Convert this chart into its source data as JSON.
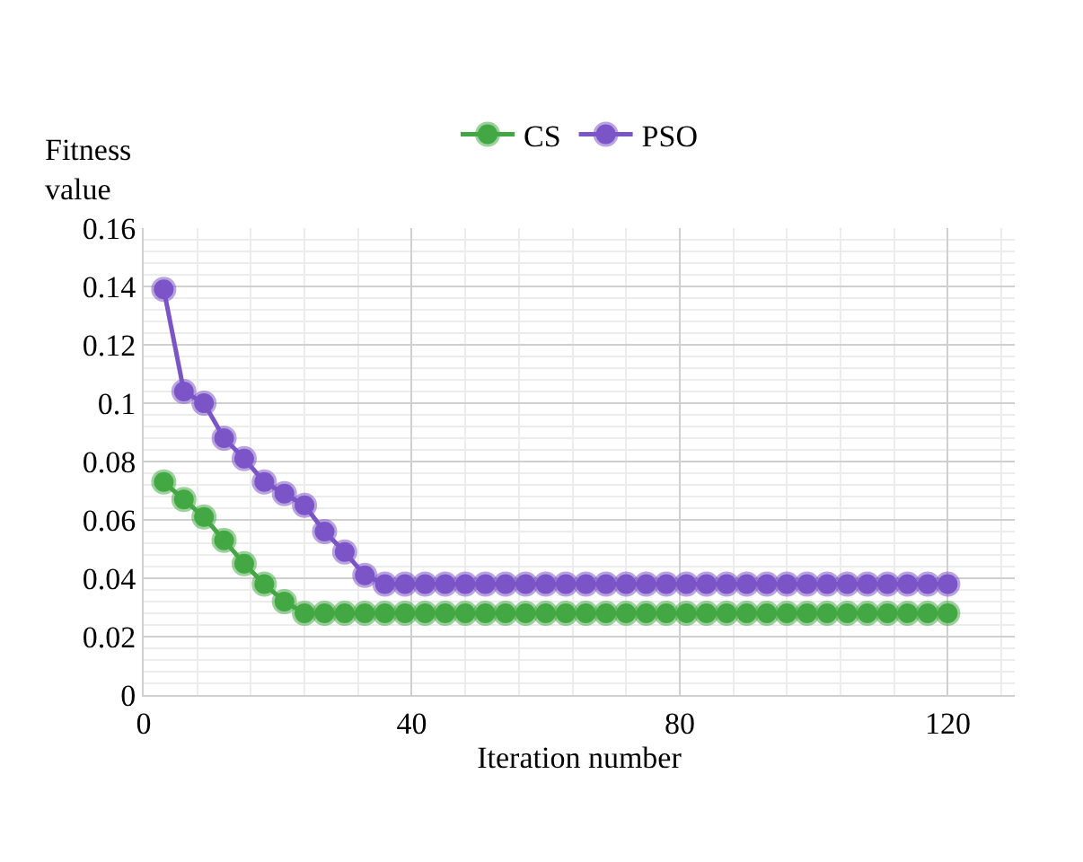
{
  "chart_data": {
    "type": "line",
    "xlabel": "Iteration number",
    "ylabel": "Fitness value",
    "x": [
      3,
      6,
      9,
      12,
      15,
      18,
      21,
      24,
      27,
      30,
      33,
      36,
      39,
      42,
      45,
      48,
      51,
      54,
      57,
      60,
      63,
      66,
      69,
      72,
      75,
      78,
      81,
      84,
      87,
      90,
      93,
      96,
      99,
      102,
      105,
      108,
      111,
      114,
      117,
      120
    ],
    "series": [
      {
        "name": "CS",
        "color": "#43a843",
        "values": [
          0.073,
          0.067,
          0.061,
          0.053,
          0.045,
          0.038,
          0.032,
          0.028,
          0.028,
          0.028,
          0.028,
          0.028,
          0.028,
          0.028,
          0.028,
          0.028,
          0.028,
          0.028,
          0.028,
          0.028,
          0.028,
          0.028,
          0.028,
          0.028,
          0.028,
          0.028,
          0.028,
          0.028,
          0.028,
          0.028,
          0.028,
          0.028,
          0.028,
          0.028,
          0.028,
          0.028,
          0.028,
          0.028,
          0.028,
          0.028
        ]
      },
      {
        "name": "PSO",
        "color": "#7b55c7",
        "values": [
          0.139,
          0.104,
          0.1,
          0.088,
          0.081,
          0.073,
          0.069,
          0.065,
          0.056,
          0.049,
          0.041,
          0.038,
          0.038,
          0.038,
          0.038,
          0.038,
          0.038,
          0.038,
          0.038,
          0.038,
          0.038,
          0.038,
          0.038,
          0.038,
          0.038,
          0.038,
          0.038,
          0.038,
          0.038,
          0.038,
          0.038,
          0.038,
          0.038,
          0.038,
          0.038,
          0.038,
          0.038,
          0.038,
          0.038,
          0.038
        ]
      }
    ],
    "xlim": [
      0,
      130
    ],
    "xticks": [
      0,
      40,
      80,
      120
    ],
    "ylim": [
      0,
      0.16
    ],
    "yticks": [
      0,
      {
        "value": 0.02,
        "label": "0.02"
      },
      {
        "value": 0.04,
        "label": "0.04"
      },
      {
        "value": 0.06,
        "label": "0.06"
      },
      {
        "value": 0.08,
        "label": "0.08"
      },
      {
        "value": 0.1,
        "label": "0.1"
      },
      {
        "value": 0.12,
        "label": "0.12"
      },
      {
        "value": 0.14,
        "label": "0.14"
      },
      {
        "value": 0.16,
        "label": "0.16"
      }
    ],
    "grid": true,
    "legend": "top",
    "marker": "circle",
    "line_style": "solid"
  }
}
